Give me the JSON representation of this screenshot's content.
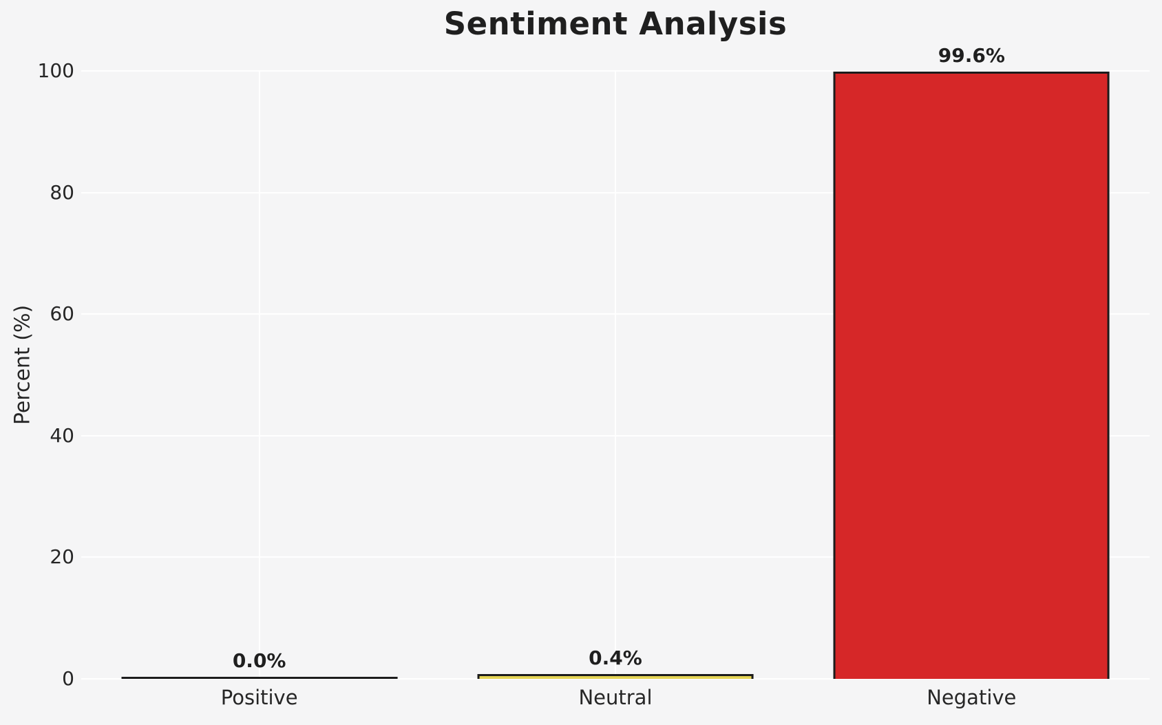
{
  "chart_data": {
    "type": "bar",
    "title": "Sentiment Analysis",
    "xlabel": "",
    "ylabel": "Percent (%)",
    "categories": [
      "Positive",
      "Neutral",
      "Negative"
    ],
    "values": [
      0.0,
      0.4,
      99.6
    ],
    "bar_labels": [
      "0.0%",
      "0.4%",
      "99.6%"
    ],
    "series": [
      {
        "name": "Percent",
        "values": [
          0.0,
          0.4,
          99.6
        ]
      }
    ],
    "yticks": [
      0,
      20,
      40,
      60,
      80,
      100
    ],
    "ylim": [
      0,
      100
    ],
    "grid": true,
    "legend_position": "none",
    "bar_colors": [
      "transparent",
      "#e5d455",
      "#d62728"
    ],
    "bar_edge_color": "#1c1c1c"
  },
  "colors": {
    "background": "#f5f5f6",
    "gridline": "#ffffff",
    "title_text": "#1f1f1f",
    "tick_text": "#262626"
  }
}
